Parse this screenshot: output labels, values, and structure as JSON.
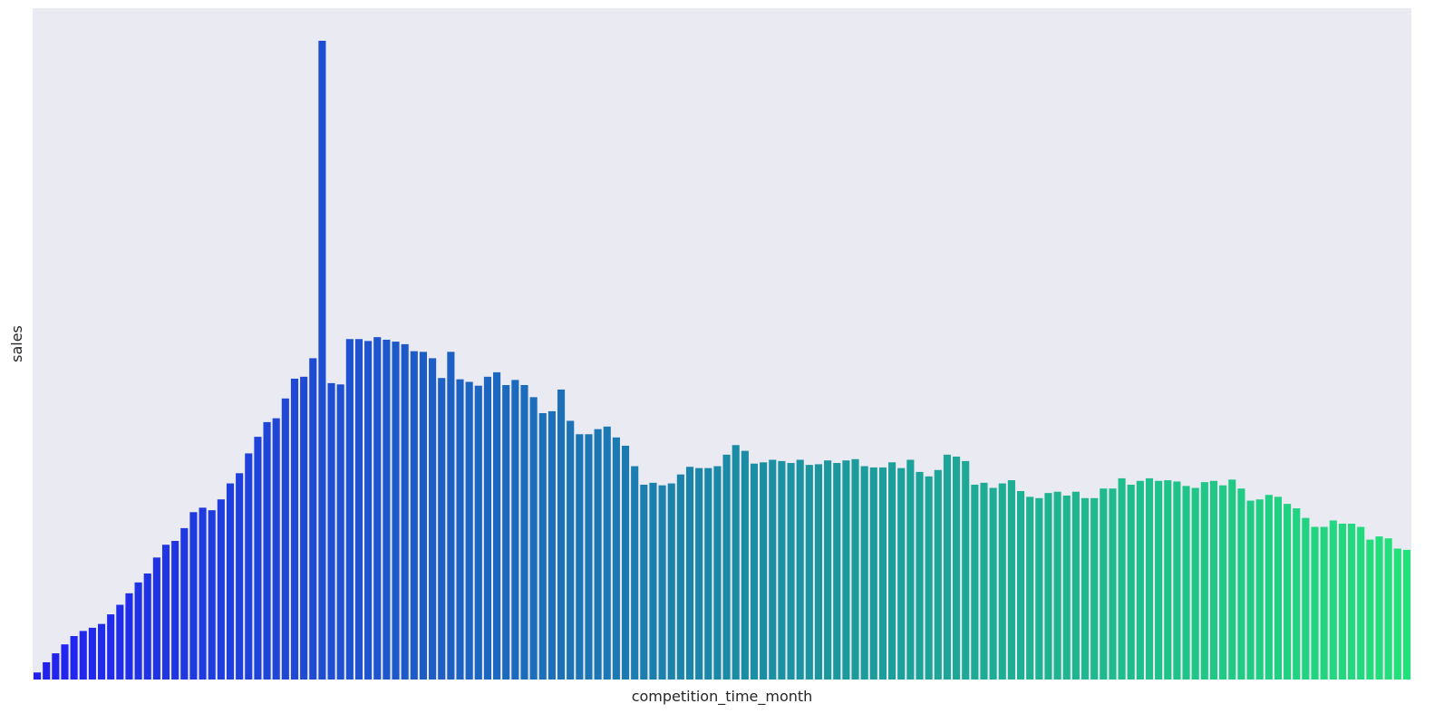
{
  "chart_data": {
    "type": "bar",
    "xlabel": "competition_time_month",
    "ylabel": "sales",
    "grid": false,
    "ylim": [
      0,
      100
    ],
    "palette": {
      "start": "#2121f1",
      "middle": "#1a8aa6",
      "end": "#22e07a"
    },
    "background": "#eaeaf2",
    "values": [
      1.1,
      2.7,
      4.1,
      5.5,
      6.8,
      7.6,
      8.1,
      8.7,
      10.2,
      11.7,
      13.5,
      15.2,
      16.6,
      19.1,
      21.1,
      21.7,
      23.7,
      26.2,
      26.9,
      26.5,
      28.2,
      30.7,
      32.3,
      35.4,
      38.0,
      40.3,
      40.9,
      44.0,
      47.1,
      47.4,
      50.3,
      100.0,
      46.4,
      46.2,
      53.3,
      53.3,
      53.0,
      53.6,
      53.2,
      52.9,
      52.5,
      51.4,
      51.3,
      50.3,
      47.2,
      51.3,
      47.0,
      46.6,
      46.0,
      47.4,
      48.1,
      46.1,
      46.9,
      46.1,
      44.2,
      41.7,
      42.0,
      45.4,
      40.5,
      38.4,
      38.4,
      39.2,
      39.6,
      37.9,
      36.6,
      33.4,
      30.5,
      30.8,
      30.4,
      30.7,
      32.1,
      33.3,
      33.1,
      33.1,
      33.4,
      35.2,
      36.7,
      35.8,
      33.8,
      34.0,
      34.4,
      34.2,
      33.9,
      34.4,
      33.6,
      33.7,
      34.3,
      33.9,
      34.3,
      34.5,
      33.4,
      33.2,
      33.2,
      34.0,
      33.1,
      34.4,
      32.5,
      31.8,
      32.8,
      35.2,
      34.9,
      34.2,
      30.5,
      30.8,
      30.0,
      30.7,
      31.2,
      29.5,
      28.6,
      28.4,
      29.2,
      29.4,
      28.8,
      29.4,
      28.4,
      28.4,
      29.9,
      29.9,
      31.5,
      30.5,
      31.1,
      31.5,
      31.1,
      31.2,
      31.0,
      30.3,
      30.0,
      30.9,
      31.1,
      30.4,
      31.3,
      29.9,
      28.0,
      28.2,
      28.9,
      28.6,
      27.5,
      26.8,
      25.3,
      23.9,
      23.9,
      24.9,
      24.4,
      24.4,
      23.9,
      21.9,
      22.4,
      22.1,
      20.5,
      20.3
    ]
  }
}
